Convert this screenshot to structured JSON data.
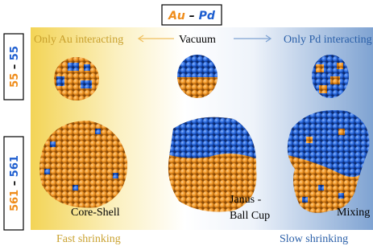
{
  "title": {
    "parts": [
      "Au",
      "–",
      "Pd"
    ]
  },
  "rows": [
    {
      "parts": [
        "55",
        "–",
        "55"
      ]
    },
    {
      "parts": [
        "561",
        "–",
        "561"
      ]
    }
  ],
  "header": {
    "left": "Only Au interacting",
    "center": "Vacuum",
    "right": "Only Pd interacting"
  },
  "labels": {
    "core_shell": "Core-Shell",
    "janus": [
      "Janus -",
      "Ball Cup"
    ],
    "mixing": "Mixing"
  },
  "footer": {
    "left": "Fast shrinking",
    "right": "Slow shrinking"
  }
}
